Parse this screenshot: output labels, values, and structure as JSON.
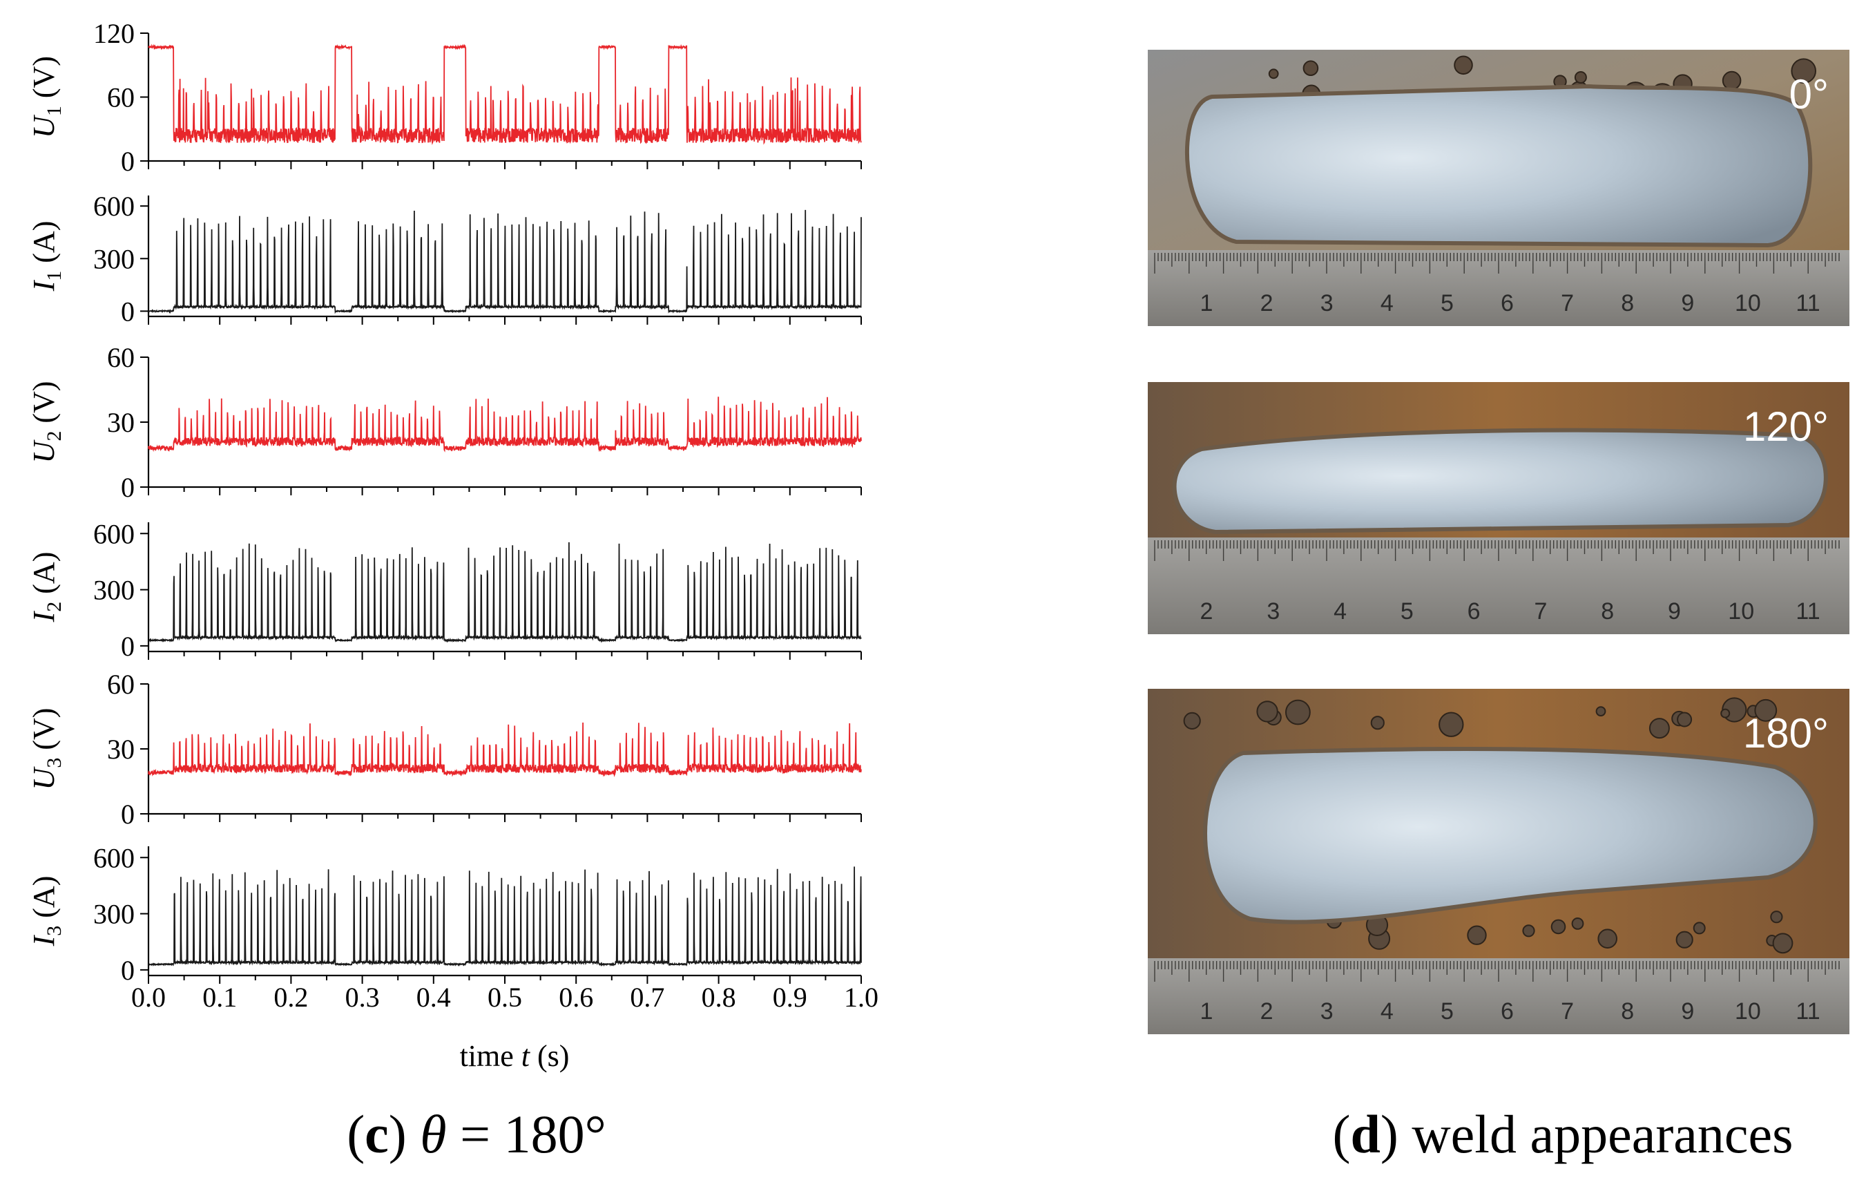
{
  "panels": {
    "c": {
      "caption_letter": "c",
      "caption_rest": "θ = 180°",
      "xlabel_pre": "time ",
      "xlabel_var": "t",
      "xlabel_post": " (s)"
    },
    "d": {
      "caption_letter": "d",
      "caption_rest": "weld appearances"
    }
  },
  "chart_data": {
    "type": "line",
    "x_range": [
      0,
      1.0
    ],
    "x_ticks": [
      "0.0",
      "0.1",
      "0.2",
      "0.3",
      "0.4",
      "0.5",
      "0.6",
      "0.7",
      "0.8",
      "0.9",
      "1.0"
    ],
    "x_tick_values": [
      0,
      0.1,
      0.2,
      0.3,
      0.4,
      0.5,
      0.6,
      0.7,
      0.8,
      0.9,
      1.0
    ],
    "xlabel": "time t (s)",
    "gaps_s": [
      [
        0.0,
        0.035
      ],
      [
        0.262,
        0.285
      ],
      [
        0.415,
        0.445
      ],
      [
        0.632,
        0.655
      ],
      [
        0.73,
        0.755
      ]
    ],
    "panels": [
      {
        "var": "U",
        "sub": "1",
        "unit": "(V)",
        "color": "#e8262b",
        "ylim": [
          0,
          120
        ],
        "yticks": [
          0,
          60,
          120
        ],
        "baseline": 24,
        "gap_value": 107,
        "peak": 70,
        "period_s": 0.0105
      },
      {
        "var": "I",
        "sub": "1",
        "unit": "(A)",
        "color": "#1a1a1a",
        "ylim": [
          -30,
          660
        ],
        "yticks": [
          0,
          300,
          600
        ],
        "baseline": 25,
        "gap_value": 0,
        "peak": 580,
        "period_s": 0.0098
      },
      {
        "var": "U",
        "sub": "2",
        "unit": "(V)",
        "color": "#e8262b",
        "ylim": [
          0,
          60
        ],
        "yticks": [
          0,
          30,
          60
        ],
        "baseline": 21,
        "gap_value": 18,
        "peak": 40,
        "period_s": 0.0085
      },
      {
        "var": "I",
        "sub": "2",
        "unit": "(A)",
        "color": "#1a1a1a",
        "ylim": [
          -30,
          660
        ],
        "yticks": [
          0,
          300,
          600
        ],
        "baseline": 45,
        "gap_value": 30,
        "peak": 560,
        "period_s": 0.0088
      },
      {
        "var": "U",
        "sub": "3",
        "unit": "(V)",
        "color": "#e8262b",
        "ylim": [
          0,
          60
        ],
        "yticks": [
          0,
          30,
          60
        ],
        "baseline": 21,
        "gap_value": 19,
        "peak": 40,
        "period_s": 0.0087
      },
      {
        "var": "I",
        "sub": "3",
        "unit": "(A)",
        "color": "#1a1a1a",
        "ylim": [
          -30,
          660
        ],
        "yticks": [
          0,
          300,
          600
        ],
        "baseline": 40,
        "gap_value": 30,
        "peak": 560,
        "period_s": 0.009
      }
    ]
  },
  "welds": [
    {
      "angle": "0°",
      "ruler": [
        "1",
        "2",
        "3",
        "4",
        "5",
        "6",
        "7",
        "8",
        "9",
        "10",
        "11"
      ]
    },
    {
      "angle": "120°",
      "ruler": [
        "2",
        "3",
        "4",
        "5",
        "6",
        "7",
        "8",
        "9",
        "10",
        "11"
      ]
    },
    {
      "angle": "180°",
      "ruler": [
        "1",
        "2",
        "3",
        "4",
        "5",
        "6",
        "7",
        "8",
        "9",
        "10",
        "11"
      ]
    }
  ]
}
